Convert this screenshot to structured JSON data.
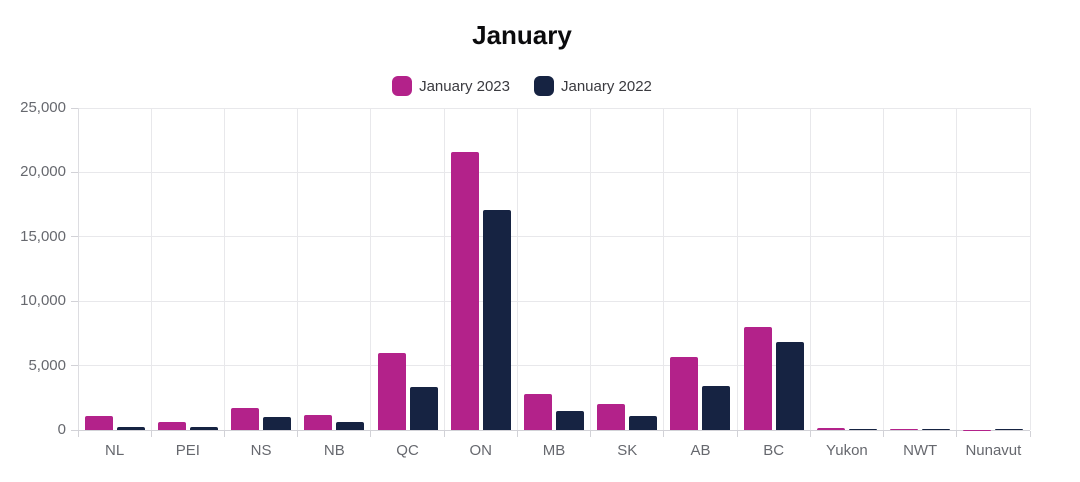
{
  "chart_data": {
    "type": "bar",
    "title": "January",
    "categories": [
      "NL",
      "PEI",
      "NS",
      "NB",
      "QC",
      "ON",
      "MB",
      "SK",
      "AB",
      "BC",
      "Yukon",
      "NWT",
      "Nunavut"
    ],
    "series": [
      {
        "name": "January 2023",
        "color": "#B3228A",
        "values": [
          1100,
          600,
          1700,
          1200,
          6000,
          21600,
          2800,
          2000,
          5700,
          8000,
          150,
          100,
          30
        ]
      },
      {
        "name": "January 2022",
        "color": "#162342",
        "values": [
          250,
          200,
          1000,
          600,
          3300,
          17100,
          1500,
          1100,
          3400,
          6800,
          100,
          100,
          100
        ]
      }
    ],
    "ylim": [
      0,
      25000
    ],
    "yticks": [
      0,
      5000,
      10000,
      15000,
      20000,
      25000
    ],
    "ytick_labels": [
      "0",
      "5,000",
      "10,000",
      "15,000",
      "20,000",
      "25,000"
    ],
    "grid": true,
    "legend_position": "top",
    "xlabel": "",
    "ylabel": ""
  },
  "colors": {
    "series_2023": "#B3228A",
    "series_2022": "#162342",
    "grid": "#e8e8eb",
    "tick_text": "#66686e",
    "title_text": "#0b0b0d"
  }
}
